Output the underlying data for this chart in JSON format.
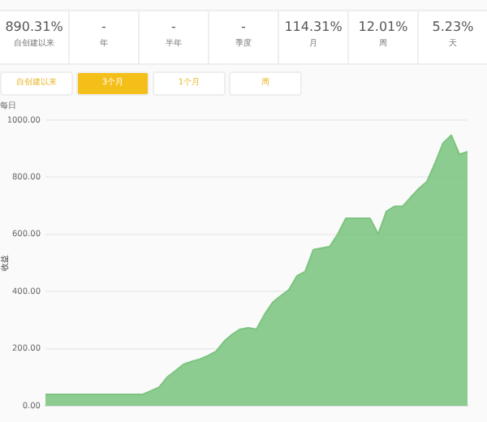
{
  "chart_data": [
    {
      "type": "other",
      "annotations": [
        "890.31%",
        "自创建以来",
        "-",
        "年",
        "-",
        "半年",
        "-",
        "季度",
        "114.31%",
        "月",
        "12.01%",
        "周",
        "5.23%",
        "天"
      ]
    },
    {
      "type": "other",
      "annotations": [
        "自创建以来",
        "3个月",
        "1个月",
        "周"
      ]
    },
    {
      "type": "area",
      "title": "每日",
      "ylabel": "收益",
      "categories": [
        null,
        null,
        null,
        null,
        null,
        null,
        null,
        null,
        null,
        null,
        null,
        null,
        null,
        null,
        null,
        null,
        null,
        null,
        null,
        null,
        null,
        null,
        null,
        null,
        null,
        null,
        null,
        null,
        null,
        null,
        null,
        null,
        null,
        null,
        null,
        null,
        null,
        null,
        null,
        null,
        null,
        null,
        null,
        null,
        null,
        null,
        null,
        null,
        null,
        null,
        null,
        null,
        null
      ],
      "series": [
        {
          "color": "#7cc47f",
          "values": [
            40,
            40,
            40,
            40,
            40,
            40,
            40,
            40,
            40,
            40,
            40,
            40,
            40,
            52,
            65,
            100,
            122,
            145,
            155,
            163,
            175,
            190,
            225,
            250,
            268,
            273,
            268,
            320,
            362,
            385,
            406,
            455,
            470,
            546,
            552,
            557,
            600,
            656,
            656,
            656,
            656,
            601,
            680,
            698,
            698,
            730,
            760,
            785,
            850,
            920,
            947,
            880,
            889
          ]
        }
      ],
      "ylim": [
        0,
        1000
      ],
      "yticks": [
        {
          "value": 0,
          "label": "0.00"
        },
        {
          "value": 200,
          "label": "200.00"
        },
        {
          "value": 400,
          "label": "400.00"
        },
        {
          "value": 600,
          "label": "600.00"
        },
        {
          "value": 800,
          "label": "800.00"
        },
        {
          "value": 1000,
          "label": "1000.00"
        }
      ],
      "grid": "y"
    }
  ]
}
